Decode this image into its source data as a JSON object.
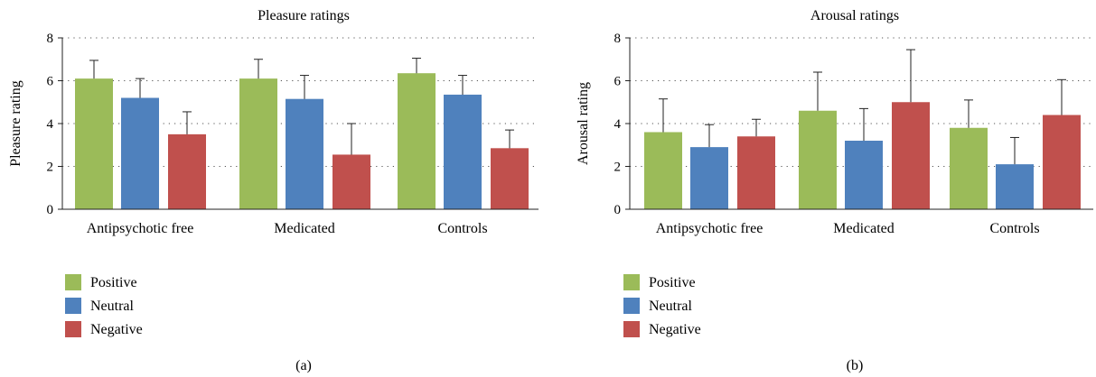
{
  "chart_data": [
    {
      "type": "bar",
      "title": "Pleasure ratings",
      "ylabel": "Pleasure rating",
      "xlabel": "",
      "ylim": [
        0,
        8
      ],
      "yticks": [
        "0",
        "2",
        "4",
        "6",
        "8"
      ],
      "grid": "dotted horizontal",
      "categories": [
        "Antipsychotic free",
        "Medicated",
        "Controls"
      ],
      "series": [
        {
          "name": "Positive",
          "color": "#9bbb59",
          "values": [
            6.1,
            6.1,
            6.35
          ],
          "error": [
            0.85,
            0.9,
            0.7
          ]
        },
        {
          "name": "Neutral",
          "color": "#4f81bd",
          "values": [
            5.2,
            5.15,
            5.35
          ],
          "error": [
            0.9,
            1.1,
            0.9
          ]
        },
        {
          "name": "Negative",
          "color": "#c0504d",
          "values": [
            3.5,
            2.55,
            2.85
          ],
          "error": [
            1.05,
            1.45,
            0.85
          ]
        }
      ],
      "caption": "(a)"
    },
    {
      "type": "bar",
      "title": "Arousal ratings",
      "ylabel": "Arousal rating",
      "xlabel": "",
      "ylim": [
        0,
        8
      ],
      "yticks": [
        "0",
        "2",
        "4",
        "6",
        "8"
      ],
      "grid": "dotted horizontal",
      "categories": [
        "Antipsychotic free",
        "Medicated",
        "Controls"
      ],
      "series": [
        {
          "name": "Positive",
          "color": "#9bbb59",
          "values": [
            3.6,
            4.6,
            3.8
          ],
          "error": [
            1.55,
            1.8,
            1.3
          ]
        },
        {
          "name": "Neutral",
          "color": "#4f81bd",
          "values": [
            2.9,
            3.2,
            2.1
          ],
          "error": [
            1.05,
            1.5,
            1.25
          ]
        },
        {
          "name": "Negative",
          "color": "#c0504d",
          "values": [
            3.4,
            5.0,
            4.4
          ],
          "error": [
            0.8,
            2.45,
            1.65
          ]
        }
      ],
      "caption": "(b)"
    }
  ]
}
